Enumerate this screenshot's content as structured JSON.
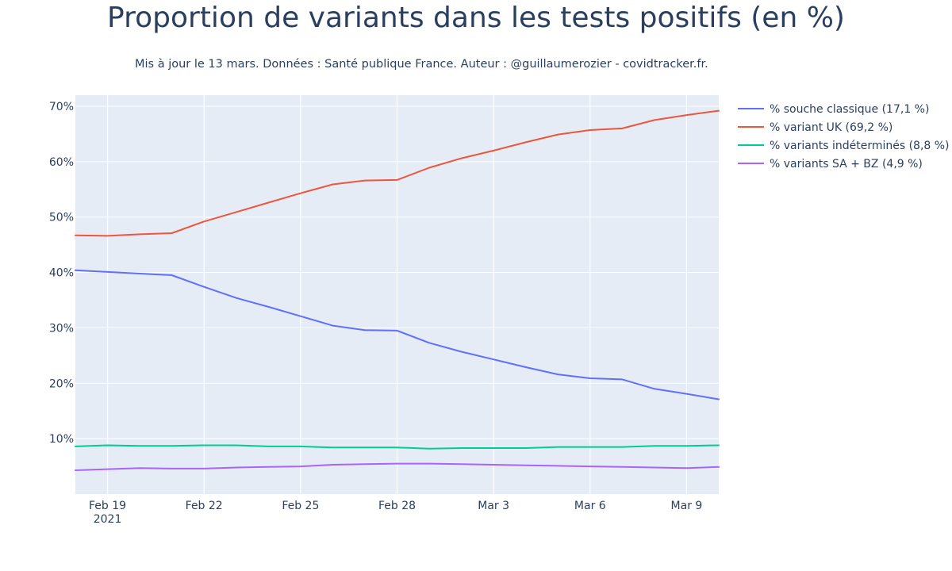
{
  "chart_data": {
    "type": "line",
    "title": "Proportion de variants dans les tests positifs (en %)",
    "subtitle": "Mis à jour le 13 mars. Données : Santé publique France. Auteur : @guillaumerozier - covidtracker.fr.",
    "xlabel": "",
    "ylabel": "",
    "x": [
      "2021-02-18",
      "2021-02-19",
      "2021-02-20",
      "2021-02-21",
      "2021-02-22",
      "2021-02-23",
      "2021-02-24",
      "2021-02-25",
      "2021-02-26",
      "2021-02-27",
      "2021-02-28",
      "2021-03-01",
      "2021-03-02",
      "2021-03-03",
      "2021-03-04",
      "2021-03-05",
      "2021-03-06",
      "2021-03-07",
      "2021-03-08",
      "2021-03-09",
      "2021-03-10"
    ],
    "xlim": [
      "2021-02-18",
      "2021-03-10"
    ],
    "x_ticks": [
      {
        "date": "2021-02-19",
        "label": "Feb 19",
        "sublabel": "2021"
      },
      {
        "date": "2021-02-22",
        "label": "Feb 22",
        "sublabel": ""
      },
      {
        "date": "2021-02-25",
        "label": "Feb 25",
        "sublabel": ""
      },
      {
        "date": "2021-02-28",
        "label": "Feb 28",
        "sublabel": ""
      },
      {
        "date": "2021-03-03",
        "label": "Mar 3",
        "sublabel": ""
      },
      {
        "date": "2021-03-06",
        "label": "Mar 6",
        "sublabel": ""
      },
      {
        "date": "2021-03-09",
        "label": "Mar 9",
        "sublabel": ""
      }
    ],
    "ylim": [
      0,
      72
    ],
    "y_ticks": [
      {
        "value": 10,
        "label": "10%"
      },
      {
        "value": 20,
        "label": "20%"
      },
      {
        "value": 30,
        "label": "30%"
      },
      {
        "value": 40,
        "label": "40%"
      },
      {
        "value": 50,
        "label": "50%"
      },
      {
        "value": 60,
        "label": "60%"
      },
      {
        "value": 70,
        "label": "70%"
      }
    ],
    "grid": true,
    "plot_background": "#e5ecf6",
    "legend_position": "right",
    "series": [
      {
        "name": "% souche classique (17,1 %)",
        "color": "#636efa",
        "values": [
          40.4,
          40.1,
          39.8,
          39.5,
          37.4,
          35.4,
          33.8,
          32.1,
          30.4,
          29.6,
          29.5,
          27.3,
          25.7,
          24.3,
          22.9,
          21.6,
          20.9,
          20.7,
          19.0,
          18.1,
          17.1
        ]
      },
      {
        "name": "% variant UK (69,2 %)",
        "color": "#ef553b",
        "values": [
          46.7,
          46.6,
          46.9,
          47.1,
          49.2,
          50.9,
          52.6,
          54.3,
          55.9,
          56.6,
          56.7,
          58.9,
          60.6,
          62.0,
          63.5,
          64.9,
          65.7,
          66.0,
          67.5,
          68.4,
          69.2
        ]
      },
      {
        "name": "% variants indéterminés (8,8 %)",
        "color": "#00cc96",
        "values": [
          8.6,
          8.8,
          8.7,
          8.7,
          8.8,
          8.8,
          8.6,
          8.6,
          8.4,
          8.4,
          8.4,
          8.2,
          8.3,
          8.3,
          8.3,
          8.5,
          8.5,
          8.5,
          8.7,
          8.7,
          8.8
        ]
      },
      {
        "name": "% variants SA + BZ (4,9 %)",
        "color": "#ab63fa",
        "values": [
          4.3,
          4.5,
          4.7,
          4.6,
          4.6,
          4.8,
          4.9,
          5.0,
          5.3,
          5.4,
          5.5,
          5.5,
          5.4,
          5.3,
          5.2,
          5.1,
          5.0,
          4.9,
          4.8,
          4.7,
          4.9
        ]
      }
    ]
  }
}
